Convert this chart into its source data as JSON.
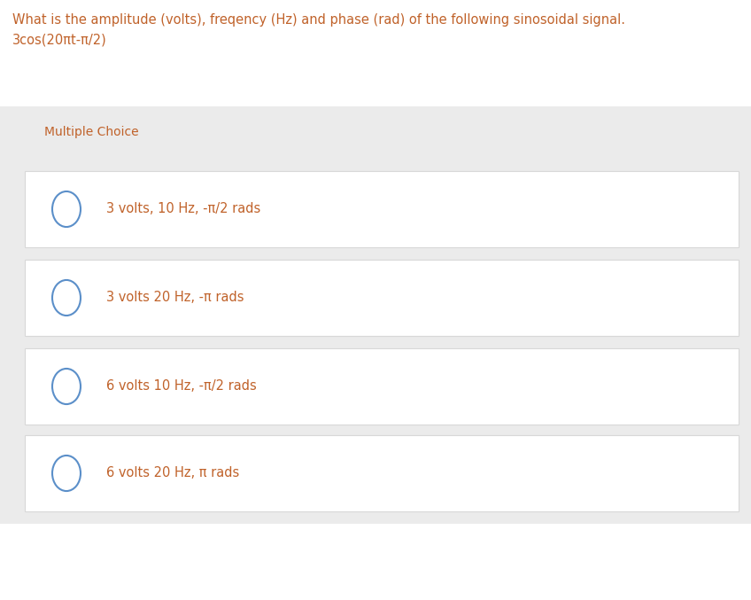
{
  "title_line1": "What is the amplitude (volts), freqency (Hz) and phase (rad) of the following sinosoidal signal.",
  "title_line2": "3cos(20πt-π/2)",
  "title_color": "#c0622a",
  "section_label": "Multiple Choice",
  "section_label_color": "#c0622a",
  "bg_color": "#ffffff",
  "section_bg_color": "#ebebeb",
  "choice_bg_color": "#ffffff",
  "choice_border_color": "#d8d8d8",
  "sep_color": "#e8e8e8",
  "circle_color": "#5b8fc9",
  "text_color": "#c0622a",
  "choices": [
    "3 volts, 10 Hz, -π/2 rads",
    "3 volts 20 Hz, -π rads",
    "6 volts 10 Hz, -π/2 rads",
    "6 volts 20 Hz, π rads"
  ],
  "fig_width": 8.48,
  "fig_height": 6.77,
  "dpi": 100,
  "title_fontsize": 10.5,
  "choice_fontsize": 10.5,
  "section_fontsize": 10.0
}
